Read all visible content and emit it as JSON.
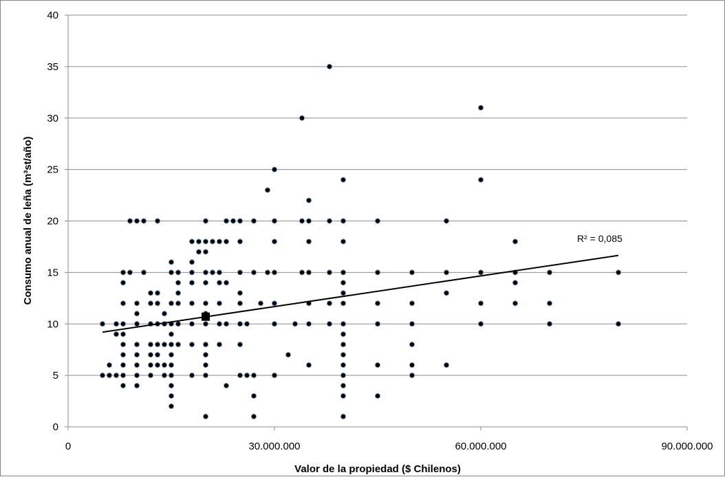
{
  "chart_data": {
    "type": "scatter",
    "title": "",
    "xlabel": "Valor  de la propiedad ($ Chilenos)",
    "ylabel": "Consumo anual de leña (m³st/año)",
    "xlim": [
      0,
      90000000
    ],
    "ylim": [
      0,
      40
    ],
    "x_ticks": [
      0,
      30000000,
      60000000,
      90000000
    ],
    "x_tick_labels": [
      "0",
      "30.000.000",
      "60.000.000",
      "90.000.000"
    ],
    "y_ticks": [
      0,
      5,
      10,
      15,
      20,
      25,
      30,
      35,
      40
    ],
    "y_tick_labels": [
      "0",
      "5",
      "10",
      "15",
      "20",
      "25",
      "30",
      "35",
      "40"
    ],
    "grid": "horizontal",
    "point_color": "#000000",
    "point_edge_color": "#7f9fbf",
    "points": [
      [
        5000000,
        10
      ],
      [
        5000000,
        5
      ],
      [
        6000000,
        6
      ],
      [
        6000000,
        5
      ],
      [
        7000000,
        10
      ],
      [
        7000000,
        9
      ],
      [
        7000000,
        5
      ],
      [
        8000000,
        15
      ],
      [
        8000000,
        14
      ],
      [
        8000000,
        12
      ],
      [
        8000000,
        10
      ],
      [
        8000000,
        9
      ],
      [
        8000000,
        8
      ],
      [
        8000000,
        7
      ],
      [
        8000000,
        6
      ],
      [
        8000000,
        5
      ],
      [
        8000000,
        4
      ],
      [
        9000000,
        20
      ],
      [
        9000000,
        15
      ],
      [
        10000000,
        20
      ],
      [
        10000000,
        12
      ],
      [
        10000000,
        11
      ],
      [
        10000000,
        10
      ],
      [
        10000000,
        8
      ],
      [
        10000000,
        7
      ],
      [
        10000000,
        6
      ],
      [
        10000000,
        5
      ],
      [
        10000000,
        4
      ],
      [
        11000000,
        20
      ],
      [
        11000000,
        15
      ],
      [
        12000000,
        13
      ],
      [
        12000000,
        12
      ],
      [
        12000000,
        10
      ],
      [
        12000000,
        8
      ],
      [
        12000000,
        7
      ],
      [
        12000000,
        6
      ],
      [
        12000000,
        5
      ],
      [
        13000000,
        20
      ],
      [
        13000000,
        13
      ],
      [
        13000000,
        12
      ],
      [
        13000000,
        10
      ],
      [
        13000000,
        8
      ],
      [
        13000000,
        7
      ],
      [
        13000000,
        6
      ],
      [
        14000000,
        11
      ],
      [
        14000000,
        10
      ],
      [
        14000000,
        8
      ],
      [
        14000000,
        6
      ],
      [
        14000000,
        5
      ],
      [
        15000000,
        16
      ],
      [
        15000000,
        15
      ],
      [
        15000000,
        12
      ],
      [
        15000000,
        10
      ],
      [
        15000000,
        9
      ],
      [
        15000000,
        8
      ],
      [
        15000000,
        7
      ],
      [
        15000000,
        6
      ],
      [
        15000000,
        5
      ],
      [
        15000000,
        4
      ],
      [
        15000000,
        3
      ],
      [
        15000000,
        2
      ],
      [
        16000000,
        15
      ],
      [
        16000000,
        14
      ],
      [
        16000000,
        13
      ],
      [
        16000000,
        12
      ],
      [
        16000000,
        10
      ],
      [
        16000000,
        8
      ],
      [
        18000000,
        18
      ],
      [
        18000000,
        16
      ],
      [
        18000000,
        15
      ],
      [
        18000000,
        14
      ],
      [
        18000000,
        12
      ],
      [
        18000000,
        10
      ],
      [
        18000000,
        8
      ],
      [
        18000000,
        5
      ],
      [
        19000000,
        18
      ],
      [
        19000000,
        17
      ],
      [
        20000000,
        20
      ],
      [
        20000000,
        18
      ],
      [
        20000000,
        17
      ],
      [
        20000000,
        15
      ],
      [
        20000000,
        14
      ],
      [
        20000000,
        12
      ],
      [
        20000000,
        11
      ],
      [
        20000000,
        10
      ],
      [
        20000000,
        8
      ],
      [
        20000000,
        7
      ],
      [
        20000000,
        6
      ],
      [
        20000000,
        5
      ],
      [
        20000000,
        1
      ],
      [
        21000000,
        18
      ],
      [
        21000000,
        15
      ],
      [
        22000000,
        18
      ],
      [
        22000000,
        15
      ],
      [
        22000000,
        14
      ],
      [
        22000000,
        12
      ],
      [
        22000000,
        10
      ],
      [
        22000000,
        8
      ],
      [
        23000000,
        20
      ],
      [
        23000000,
        18
      ],
      [
        23000000,
        14
      ],
      [
        23000000,
        10
      ],
      [
        23000000,
        4
      ],
      [
        24000000,
        20
      ],
      [
        25000000,
        20
      ],
      [
        25000000,
        18
      ],
      [
        25000000,
        15
      ],
      [
        25000000,
        13
      ],
      [
        25000000,
        12
      ],
      [
        25000000,
        10
      ],
      [
        25000000,
        8
      ],
      [
        25000000,
        5
      ],
      [
        26000000,
        10
      ],
      [
        26000000,
        5
      ],
      [
        27000000,
        20
      ],
      [
        27000000,
        15
      ],
      [
        27000000,
        5
      ],
      [
        27000000,
        3
      ],
      [
        27000000,
        1
      ],
      [
        28000000,
        12
      ],
      [
        29000000,
        23
      ],
      [
        29000000,
        15
      ],
      [
        30000000,
        25
      ],
      [
        30000000,
        20
      ],
      [
        30000000,
        18
      ],
      [
        30000000,
        15
      ],
      [
        30000000,
        12
      ],
      [
        30000000,
        10
      ],
      [
        30000000,
        5
      ],
      [
        32000000,
        7
      ],
      [
        33000000,
        10
      ],
      [
        34000000,
        30
      ],
      [
        34000000,
        20
      ],
      [
        34000000,
        15
      ],
      [
        35000000,
        22
      ],
      [
        35000000,
        20
      ],
      [
        35000000,
        18
      ],
      [
        35000000,
        15
      ],
      [
        35000000,
        12
      ],
      [
        35000000,
        10
      ],
      [
        35000000,
        6
      ],
      [
        38000000,
        35
      ],
      [
        38000000,
        20
      ],
      [
        38000000,
        15
      ],
      [
        38000000,
        12
      ],
      [
        38000000,
        10
      ],
      [
        40000000,
        24
      ],
      [
        40000000,
        20
      ],
      [
        40000000,
        18
      ],
      [
        40000000,
        15
      ],
      [
        40000000,
        14
      ],
      [
        40000000,
        13
      ],
      [
        40000000,
        12
      ],
      [
        40000000,
        10
      ],
      [
        40000000,
        9
      ],
      [
        40000000,
        8
      ],
      [
        40000000,
        7
      ],
      [
        40000000,
        6
      ],
      [
        40000000,
        5
      ],
      [
        40000000,
        4
      ],
      [
        40000000,
        3
      ],
      [
        40000000,
        1
      ],
      [
        45000000,
        20
      ],
      [
        45000000,
        15
      ],
      [
        45000000,
        12
      ],
      [
        45000000,
        10
      ],
      [
        45000000,
        6
      ],
      [
        45000000,
        3
      ],
      [
        50000000,
        15
      ],
      [
        50000000,
        12
      ],
      [
        50000000,
        10
      ],
      [
        50000000,
        8
      ],
      [
        50000000,
        6
      ],
      [
        50000000,
        5
      ],
      [
        55000000,
        20
      ],
      [
        55000000,
        15
      ],
      [
        55000000,
        13
      ],
      [
        55000000,
        6
      ],
      [
        60000000,
        31
      ],
      [
        60000000,
        24
      ],
      [
        60000000,
        15
      ],
      [
        60000000,
        12
      ],
      [
        60000000,
        10
      ],
      [
        65000000,
        18
      ],
      [
        65000000,
        15
      ],
      [
        65000000,
        14
      ],
      [
        65000000,
        12
      ],
      [
        70000000,
        15
      ],
      [
        70000000,
        12
      ],
      [
        70000000,
        10
      ],
      [
        80000000,
        15
      ],
      [
        80000000,
        10
      ]
    ],
    "mean_point": [
      20000000,
      10.7
    ],
    "trendline": {
      "type": "linear",
      "start": [
        5000000,
        9.2
      ],
      "end": [
        80000000,
        16.65
      ],
      "r2_label": "R² = 0,085"
    }
  }
}
